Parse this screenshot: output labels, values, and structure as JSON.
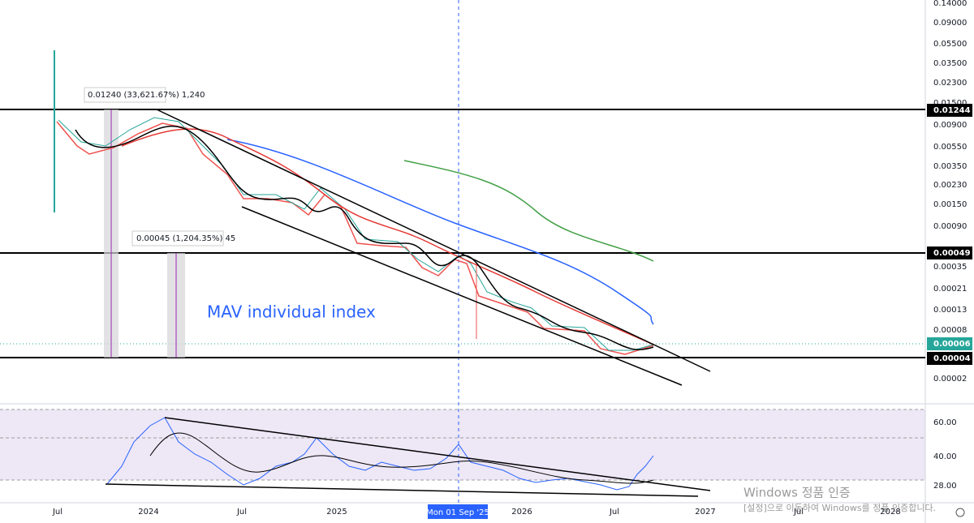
{
  "price_axis": {
    "labels": [
      "0.14000",
      "0.09000",
      "0.05500",
      "0.03500",
      "0.02300",
      "0.01500",
      "0.00900",
      "0.00550",
      "0.00350",
      "0.00230",
      "0.00150",
      "0.00090",
      "0.00035",
      "0.00021",
      "0.00013",
      "0.00008",
      "0.00002"
    ]
  },
  "price_markers": [
    "0.01244",
    "0.00049",
    "0.00006",
    "0.00004"
  ],
  "time_axis": {
    "labels": [
      "Jul",
      "2024",
      "Jul",
      "2025",
      "2026",
      "Jul",
      "2027",
      "Jul",
      "2028"
    ],
    "crosshair_label": "Mon 01 Sep '25"
  },
  "annotations": [
    "0.01240 (33,621.67%) 1,240",
    "0.00045 (1,204.35%) 45"
  ],
  "chart_label": "MAV individual index",
  "rsi_axis": {
    "labels": [
      "60.00",
      "40.00",
      "28.00"
    ]
  },
  "watermark": {
    "title": "Windows 정품 인증",
    "text": "[설정]으로 이동하여 Windows를 정품 인증합니다."
  }
}
